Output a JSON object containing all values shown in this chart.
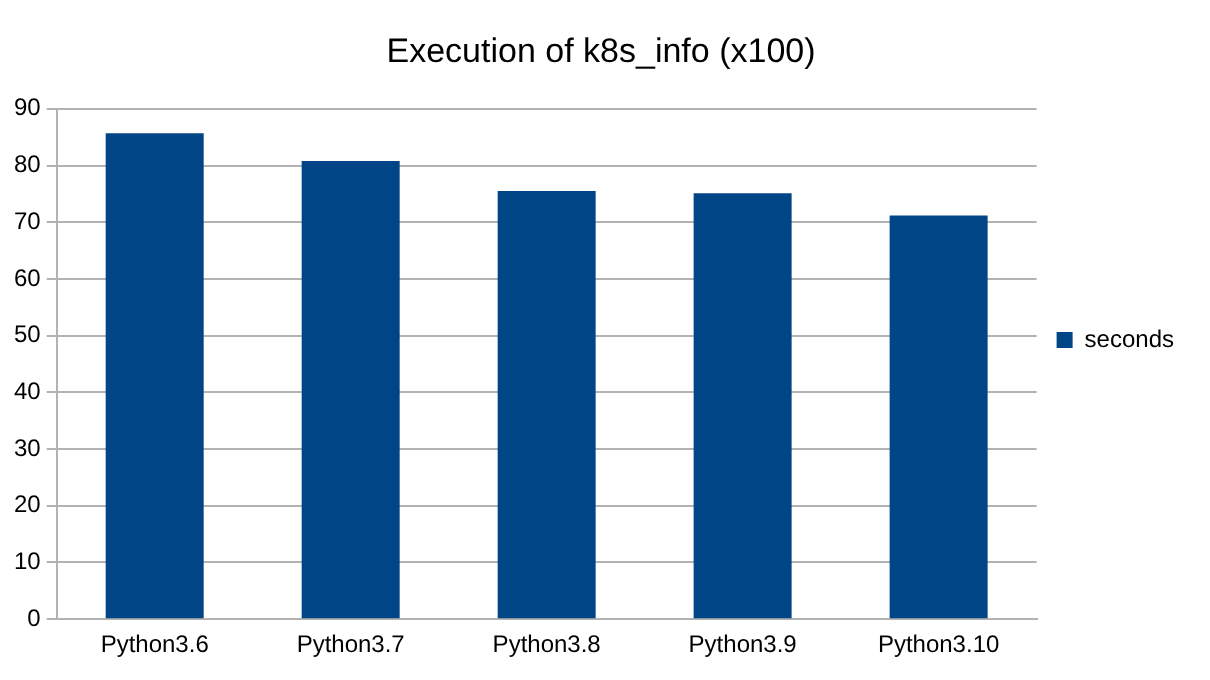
{
  "chart_data": {
    "type": "bar",
    "title": "Execution of k8s_info (x100)",
    "categories": [
      "Python3.6",
      "Python3.7",
      "Python3.8",
      "Python3.9",
      "Python3.10"
    ],
    "series": [
      {
        "name": "seconds",
        "color": "#004586",
        "values": [
          85.7,
          80.8,
          75.5,
          75.1,
          71.2
        ]
      }
    ],
    "ylim": [
      0,
      90
    ],
    "yticks": [
      0,
      10,
      20,
      30,
      40,
      50,
      60,
      70,
      80,
      90
    ],
    "grid": "y",
    "legend": "right"
  }
}
